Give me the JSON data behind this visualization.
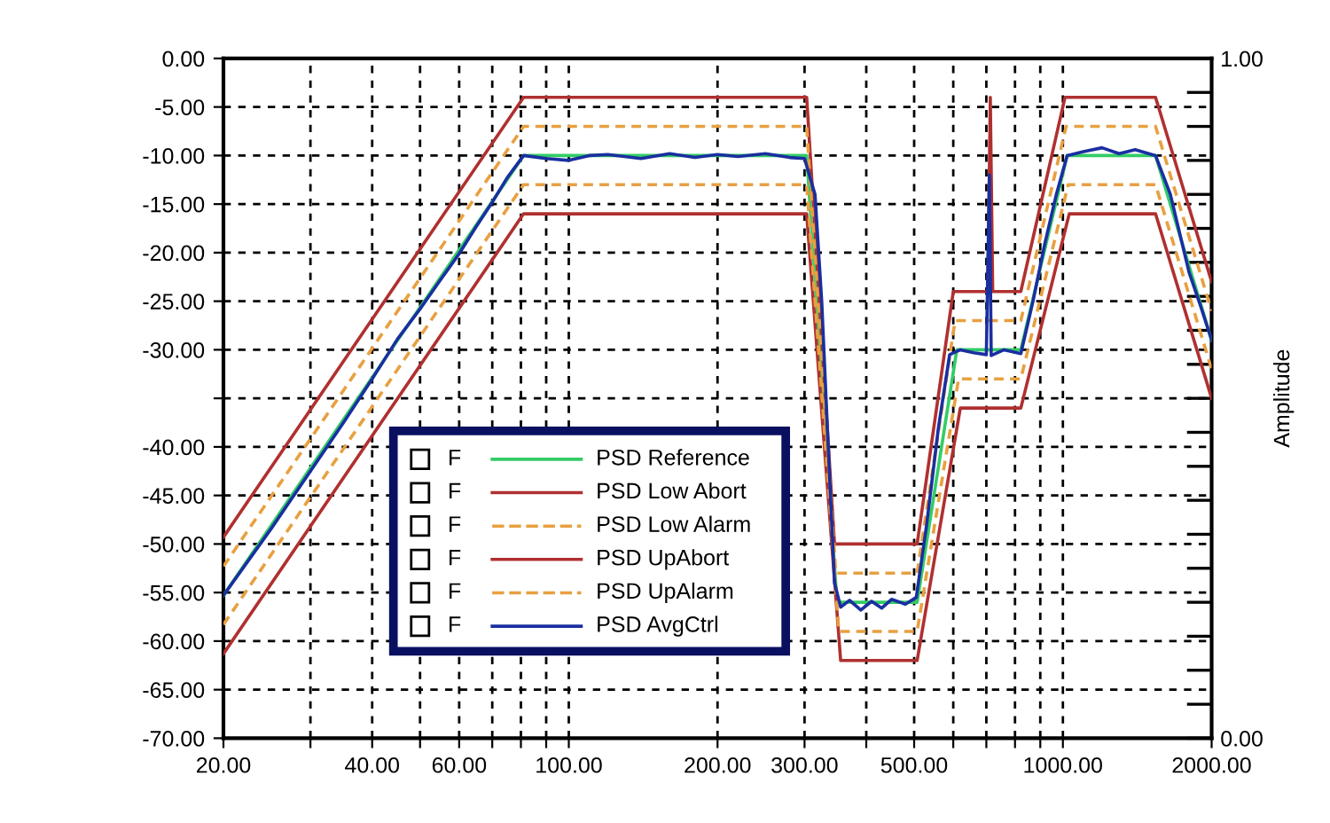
{
  "chart_data": {
    "type": "line",
    "log": "x",
    "grid": true,
    "legend": "bottom left",
    "marker": "none",
    "xlim": [
      20,
      2000
    ],
    "ylim": [
      -70,
      0
    ],
    "y2lim": [
      0,
      1
    ],
    "y2label": "Amplitude",
    "xticks": [
      {
        "value": 20,
        "label": "20.00"
      },
      {
        "value": 30,
        "label": null
      },
      {
        "value": 40,
        "label": "40.00"
      },
      {
        "value": 50,
        "label": null
      },
      {
        "value": 60,
        "label": "60.00"
      },
      {
        "value": 70,
        "label": null
      },
      {
        "value": 80,
        "label": null
      },
      {
        "value": 90,
        "label": null
      },
      {
        "value": 100,
        "label": "100.00"
      },
      {
        "value": 200,
        "label": "200.00"
      },
      {
        "value": 300,
        "label": "300.00"
      },
      {
        "value": 400,
        "label": null
      },
      {
        "value": 500,
        "label": "500.00"
      },
      {
        "value": 600,
        "label": null
      },
      {
        "value": 700,
        "label": null
      },
      {
        "value": 800,
        "label": null
      },
      {
        "value": 900,
        "label": null
      },
      {
        "value": 1000,
        "label": "1000.00"
      },
      {
        "value": 2000,
        "label": "2000.00"
      }
    ],
    "yticks": [
      {
        "value": 0,
        "label": "0.00"
      },
      {
        "value": -5,
        "label": "-5.00"
      },
      {
        "value": -10,
        "label": "-10.00"
      },
      {
        "value": -15,
        "label": "-15.00"
      },
      {
        "value": -20,
        "label": "-20.00"
      },
      {
        "value": -25,
        "label": "-25.00"
      },
      {
        "value": -30,
        "label": "-30.00"
      },
      {
        "value": -35,
        "label": null
      },
      {
        "value": -40,
        "label": "-40.00"
      },
      {
        "value": -45,
        "label": "-45.00"
      },
      {
        "value": -50,
        "label": "-50.00"
      },
      {
        "value": -55,
        "label": "-55.00"
      },
      {
        "value": -60,
        "label": "-60.00"
      },
      {
        "value": -65,
        "label": "-65.00"
      },
      {
        "value": -70,
        "label": "-70.00"
      }
    ],
    "y2ticks": [
      {
        "value": 0,
        "label": "0.00"
      },
      {
        "value": 0.05,
        "label": null
      },
      {
        "value": 0.1,
        "label": null
      },
      {
        "value": 0.15,
        "label": null
      },
      {
        "value": 0.2,
        "label": null
      },
      {
        "value": 0.25,
        "label": null
      },
      {
        "value": 0.3,
        "label": null
      },
      {
        "value": 0.35,
        "label": null
      },
      {
        "value": 0.4,
        "label": null
      },
      {
        "value": 0.45,
        "label": null
      },
      {
        "value": 0.5,
        "label": null
      },
      {
        "value": 0.55,
        "label": null
      },
      {
        "value": 0.6,
        "label": null
      },
      {
        "value": 0.65,
        "label": null
      },
      {
        "value": 0.7,
        "label": null
      },
      {
        "value": 0.75,
        "label": null
      },
      {
        "value": 0.8,
        "label": null
      },
      {
        "value": 0.85,
        "label": null
      },
      {
        "value": 0.9,
        "label": null
      },
      {
        "value": 0.95,
        "label": null
      },
      {
        "value": 1,
        "label": "1.00"
      }
    ],
    "annotations": [
      "F",
      "F",
      "F",
      "F",
      "F",
      "F"
    ],
    "series": [
      {
        "name": "PSD Reference",
        "color": "#33cc66",
        "line_style": "solid",
        "x": [
          20,
          81,
          303,
          349,
          507,
          610,
          822,
          1020,
          1540,
          2000
        ],
        "values": [
          -55.3,
          -10,
          -10,
          -56,
          -56,
          -30,
          -30,
          -10,
          -10,
          -29
        ]
      },
      {
        "name": "PSD Low Abort",
        "color": "#b03030",
        "line_style": "solid",
        "x": [
          20,
          81,
          303,
          355,
          507,
          620,
          822,
          1030,
          1540,
          2000
        ],
        "values": [
          -61.3,
          -16,
          -16,
          -62,
          -62,
          -36,
          -36,
          -16,
          -16,
          -35
        ]
      },
      {
        "name": "PSD Low Alarm",
        "color": "#e8a040",
        "line_style": "dashed",
        "x": [
          20,
          81,
          303,
          352,
          507,
          615,
          822,
          1025,
          1540,
          2000
        ],
        "values": [
          -58.3,
          -13,
          -13,
          -59,
          -59,
          -33,
          -33,
          -13,
          -13,
          -32
        ]
      },
      {
        "name": "PSD UpAbort",
        "color": "#b03030",
        "line_style": "solid",
        "x": [
          20,
          81,
          303,
          345,
          507,
          600,
          705,
          713,
          721,
          822,
          1010,
          1540,
          2000
        ],
        "values": [
          -49.3,
          -4,
          -4,
          -50,
          -50,
          -24,
          -24,
          -4,
          -24,
          -24,
          -4,
          -4,
          -23
        ]
      },
      {
        "name": "PSD UpAlarm",
        "color": "#e8a040",
        "line_style": "dashed",
        "x": [
          20,
          81,
          303,
          347,
          507,
          605,
          822,
          1015,
          1540,
          2000
        ],
        "values": [
          -52.3,
          -7,
          -7,
          -53,
          -53,
          -27,
          -27,
          -7,
          -7,
          -26
        ]
      },
      {
        "name": "PSD AvgCtrl",
        "color": "#1a2fa0",
        "line_style": "solid",
        "x": [
          20,
          25,
          30,
          35,
          40,
          45,
          50,
          55,
          60,
          65,
          70,
          75,
          81,
          90,
          100,
          110,
          120,
          140,
          160,
          180,
          200,
          220,
          250,
          280,
          300,
          315,
          325,
          335,
          345,
          355,
          370,
          390,
          410,
          430,
          450,
          480,
          505,
          530,
          560,
          590,
          620,
          660,
          700,
          710,
          716,
          760,
          822,
          870,
          920,
          970,
          1020,
          1100,
          1200,
          1300,
          1400,
          1540,
          1650,
          1800,
          1900,
          2000
        ],
        "values": [
          -55.3,
          -48.4,
          -42.5,
          -37.5,
          -33.0,
          -28.9,
          -25.8,
          -22.8,
          -20.1,
          -17.3,
          -14.8,
          -12.3,
          -10.0,
          -10.3,
          -10.5,
          -10.0,
          -9.9,
          -10.3,
          -9.8,
          -10.2,
          -9.9,
          -10.1,
          -9.8,
          -10.2,
          -10.3,
          -14,
          -25,
          -40,
          -54,
          -56.5,
          -55.8,
          -56.8,
          -55.9,
          -56.6,
          -55.7,
          -56.2,
          -55.5,
          -48,
          -38,
          -30.5,
          -30,
          -30.3,
          -30.5,
          -12,
          -30.6,
          -30,
          -30.4,
          -25,
          -19,
          -14,
          -10,
          -9.6,
          -9.2,
          -9.8,
          -9.4,
          -10,
          -14,
          -22,
          -25.5,
          -29
        ]
      }
    ]
  }
}
